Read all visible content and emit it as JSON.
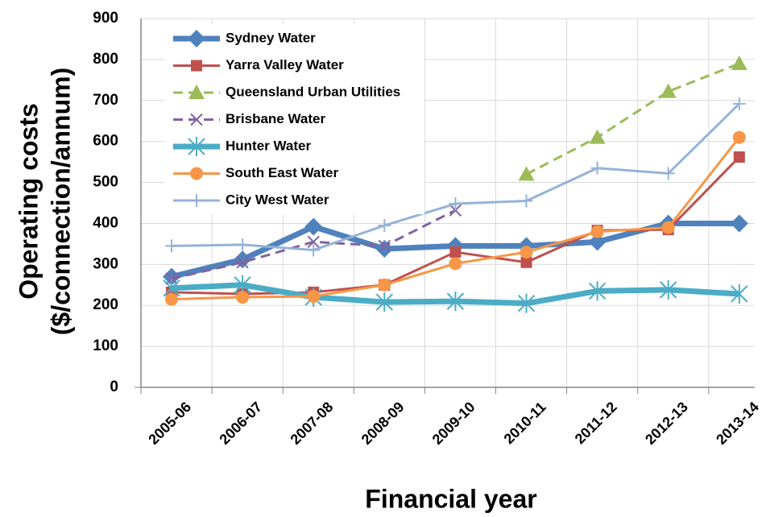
{
  "chart_data": {
    "type": "line",
    "xlabel": "Financial year",
    "ylabel": [
      "Operating costs",
      "($/connection/annum)"
    ],
    "categories": [
      "2005-06",
      "2006-07",
      "2007-08",
      "2008-09",
      "2009-10",
      "2010-11",
      "2011-12",
      "2012-13",
      "2013-14"
    ],
    "ylim": [
      0,
      900
    ],
    "yticks": [
      0,
      100,
      200,
      300,
      400,
      500,
      600,
      700,
      800,
      900
    ],
    "grid": true,
    "legend": "upper left",
    "series": [
      {
        "name": "Sydney Water",
        "color": "#4f81bd",
        "width": 7,
        "dash": "solid",
        "marker": "diamond",
        "values": [
          270,
          312,
          392,
          338,
          345,
          345,
          355,
          400,
          400
        ]
      },
      {
        "name": "Yarra Valley Water",
        "color": "#c0504d",
        "width": 3,
        "dash": "solid",
        "marker": "square",
        "values": [
          232,
          228,
          232,
          250,
          330,
          305,
          383,
          385,
          562
        ]
      },
      {
        "name": "Queensland Urban Utilities",
        "color": "#9bbb59",
        "width": 3,
        "dash": "dashed",
        "marker": "triangle",
        "values": [
          null,
          null,
          null,
          null,
          null,
          520,
          610,
          722,
          790
        ]
      },
      {
        "name": "Brisbane Water",
        "color": "#8064a2",
        "width": 3,
        "dash": "dashed",
        "marker": "x",
        "values": [
          265,
          305,
          355,
          345,
          432,
          null,
          null,
          null,
          null
        ]
      },
      {
        "name": "Hunter Water",
        "color": "#4bacc6",
        "width": 7,
        "dash": "solid",
        "marker": "asterisk",
        "values": [
          242,
          250,
          220,
          208,
          210,
          205,
          235,
          238,
          228
        ]
      },
      {
        "name": "South East Water",
        "color": "#f79646",
        "width": 3,
        "dash": "solid",
        "marker": "circle",
        "values": [
          215,
          220,
          222,
          250,
          302,
          330,
          380,
          390,
          610
        ]
      },
      {
        "name": "City West Water",
        "color": "#95b3d7",
        "width": 3,
        "dash": "solid",
        "marker": "plus",
        "values": [
          345,
          348,
          335,
          395,
          448,
          455,
          535,
          522,
          692
        ]
      }
    ]
  }
}
